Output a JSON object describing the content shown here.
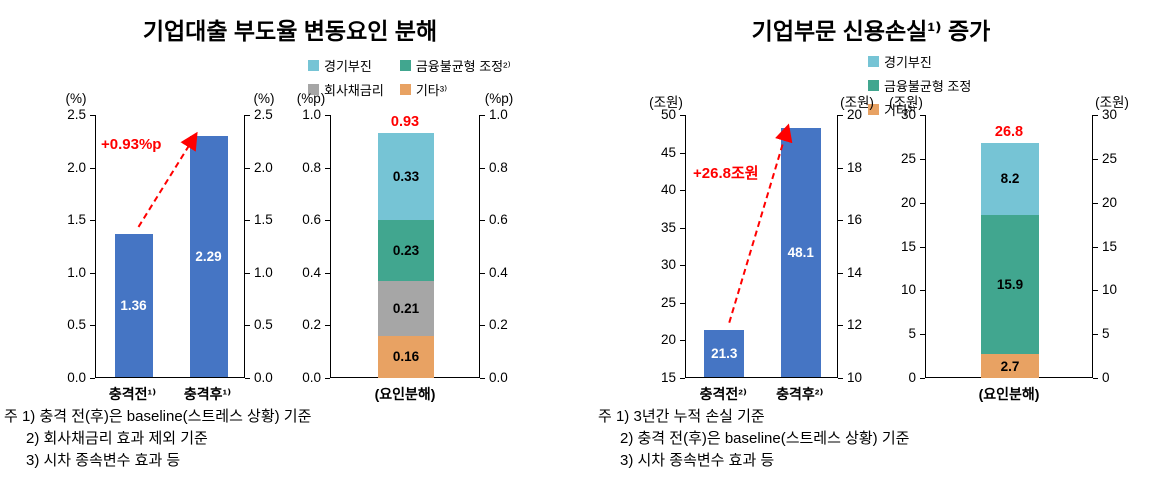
{
  "accent_red": "#FF0000",
  "panels": {
    "left": {
      "title": "기업대출 부도율 변동요인 분해",
      "legend": [
        {
          "label": "경기부진",
          "color": "#76C4D5"
        },
        {
          "label": "금융불균형 조정²⁾",
          "color": "#41A68F"
        },
        {
          "label": "회사채금리",
          "color": "#A6A6A6"
        },
        {
          "label": "기타³⁾",
          "color": "#E8A263"
        }
      ],
      "notes": [
        "주 1) 충격 전(후)은 baseline(스트레스 상황) 기준",
        "2) 회사채금리 효과 제외 기준",
        "3) 시차 종속변수 효과 등"
      ]
    },
    "right": {
      "title": "기업부문 신용손실¹⁾ 증가",
      "legend": [
        {
          "label": "경기부진",
          "color": "#76C4D5"
        },
        {
          "label": "금융불균형 조정",
          "color": "#41A68F"
        },
        {
          "label": "기타³⁾",
          "color": "#E8A263"
        }
      ],
      "notes": [
        "주 1) 3년간 누적 손실 기준",
        "2) 충격 전(후)은 baseline(스트레스 상황) 기준",
        "3) 시차 종속변수 효과 등"
      ]
    }
  },
  "chart_data": [
    {
      "id": "left-levels",
      "type": "bar",
      "title": "기업대출 부도율 변동요인 분해",
      "categories": [
        "충격전¹⁾",
        "충격후¹⁾"
      ],
      "values": [
        1.36,
        2.29
      ],
      "value_labels": [
        "1.36",
        "2.29"
      ],
      "bar_color": "#4575C4",
      "unit_left": "(%)",
      "unit_right": "(%)",
      "ylim": [
        0,
        2.5
      ],
      "yticks": [
        "2.5",
        "2.0",
        "1.5",
        "1.0",
        "0.5",
        "0.0"
      ],
      "yticks_right": [
        "2.5",
        "2.0",
        "1.5",
        "1.0",
        "0.5",
        "0.0"
      ],
      "annotation": {
        "text": "+0.93%p"
      }
    },
    {
      "id": "left-decomp",
      "type": "bar",
      "subtype": "stacked",
      "title": "기업대출 부도율 변동요인 분해 (요인분해)",
      "category": "(요인분해)",
      "segments": [
        {
          "name": "기타³⁾",
          "value": 0.16,
          "label": "0.16",
          "color": "#E8A263"
        },
        {
          "name": "회사채금리",
          "value": 0.21,
          "label": "0.21",
          "color": "#A6A6A6"
        },
        {
          "name": "금융불균형 조정²⁾",
          "value": 0.23,
          "label": "0.23",
          "color": "#41A68F"
        },
        {
          "name": "경기부진",
          "value": 0.33,
          "label": "0.33",
          "color": "#76C4D5"
        }
      ],
      "total_label": "0.93",
      "unit_left": "(%p)",
      "unit_right": "(%p)",
      "ylim": [
        0,
        1.0
      ],
      "yticks": [
        "1.0",
        "0.8",
        "0.6",
        "0.4",
        "0.2",
        "0.0"
      ],
      "yticks_right": [
        "1.0",
        "0.8",
        "0.6",
        "0.4",
        "0.2",
        "0.0"
      ]
    },
    {
      "id": "right-levels",
      "type": "bar",
      "title": "기업부문 신용손실 증가",
      "categories": [
        "충격전²⁾",
        "충격후²⁾"
      ],
      "values": [
        21.3,
        48.1
      ],
      "value_labels": [
        "21.3",
        "48.1"
      ],
      "bar_color": "#4575C4",
      "unit_left": "(조원)",
      "unit_right": "(조원)",
      "ylim": [
        15,
        50
      ],
      "yticks": [
        "50",
        "45",
        "40",
        "35",
        "30",
        "25",
        "20",
        "15"
      ],
      "ylim_right": [
        10,
        20
      ],
      "yticks_right": [
        "20",
        "18",
        "16",
        "14",
        "12",
        "10"
      ],
      "annotation": {
        "text": "+26.8조원"
      }
    },
    {
      "id": "right-decomp",
      "type": "bar",
      "subtype": "stacked",
      "title": "기업부문 신용손실 증가 (요인분해)",
      "category": "(요인분해)",
      "segments": [
        {
          "name": "기타³⁾",
          "value": 2.7,
          "label": "2.7",
          "color": "#E8A263"
        },
        {
          "name": "금융불균형 조정",
          "value": 15.9,
          "label": "15.9",
          "color": "#41A68F"
        },
        {
          "name": "경기부진",
          "value": 8.2,
          "label": "8.2",
          "color": "#76C4D5"
        }
      ],
      "total_label": "26.8",
      "unit_left": "(조원)",
      "unit_right": "(조원)",
      "ylim": [
        0,
        30
      ],
      "yticks": [
        "30",
        "25",
        "20",
        "15",
        "10",
        "5",
        "0"
      ],
      "yticks_right": [
        "30",
        "25",
        "20",
        "15",
        "10",
        "5",
        "0"
      ]
    }
  ]
}
